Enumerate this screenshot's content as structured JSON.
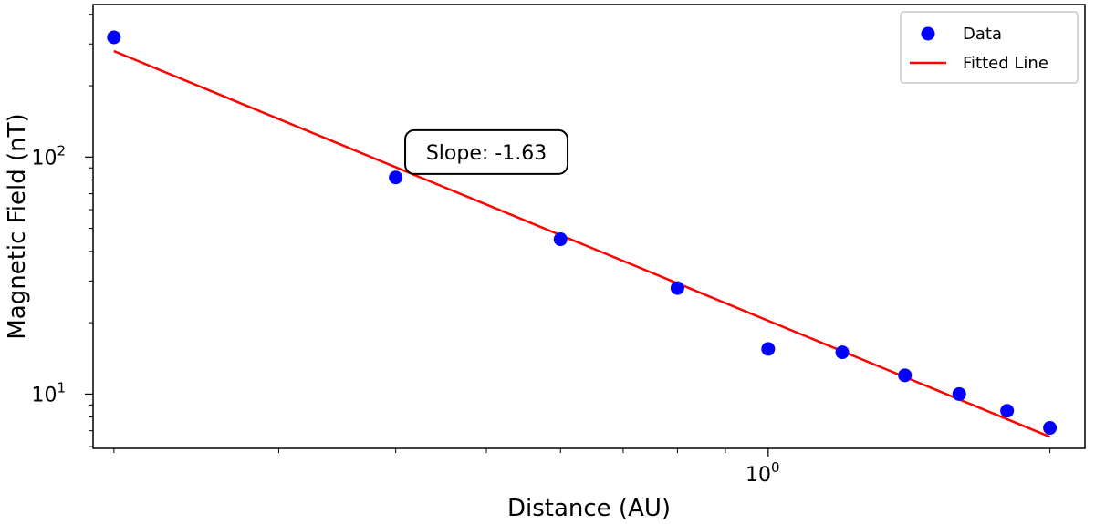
{
  "chart_data": {
    "type": "scatter",
    "xscale": "log",
    "yscale": "log",
    "xlabel": "Distance (AU)",
    "ylabel": "Magnetic Field (nT)",
    "xlim": [
      0.19,
      2.18
    ],
    "ylim": [
      5.9,
      440
    ],
    "x_ticks": [
      {
        "value": 1,
        "base": "10",
        "exp": "0"
      }
    ],
    "x_minor_ticks": [
      0.2,
      0.3,
      0.4,
      0.5,
      0.6,
      0.7,
      0.8,
      0.9,
      2
    ],
    "y_ticks": [
      {
        "value": 10,
        "base": "10",
        "exp": "1"
      },
      {
        "value": 100,
        "base": "10",
        "exp": "2"
      }
    ],
    "y_minor_ticks": [
      6,
      7,
      8,
      9,
      20,
      30,
      40,
      50,
      60,
      70,
      80,
      90,
      200,
      300,
      400
    ],
    "series": [
      {
        "name": "Data",
        "kind": "scatter",
        "color": "#0000ff",
        "x": [
          0.2,
          0.4,
          0.6,
          0.8,
          1.0,
          1.2,
          1.4,
          1.6,
          1.8,
          2.0
        ],
        "y": [
          320,
          82,
          45,
          28,
          15.5,
          15,
          12,
          10,
          8.5,
          7.2
        ]
      },
      {
        "name": "Fitted Line",
        "kind": "line",
        "color": "#ff0000",
        "x": [
          0.2,
          2.0
        ],
        "y": [
          280,
          6.6
        ]
      }
    ],
    "legend": {
      "position": "top-right",
      "entries": [
        "Data",
        "Fitted Line"
      ]
    },
    "annotation": {
      "text": "Slope: -1.63",
      "x": 0.5,
      "y": 105
    },
    "grid": false
  }
}
